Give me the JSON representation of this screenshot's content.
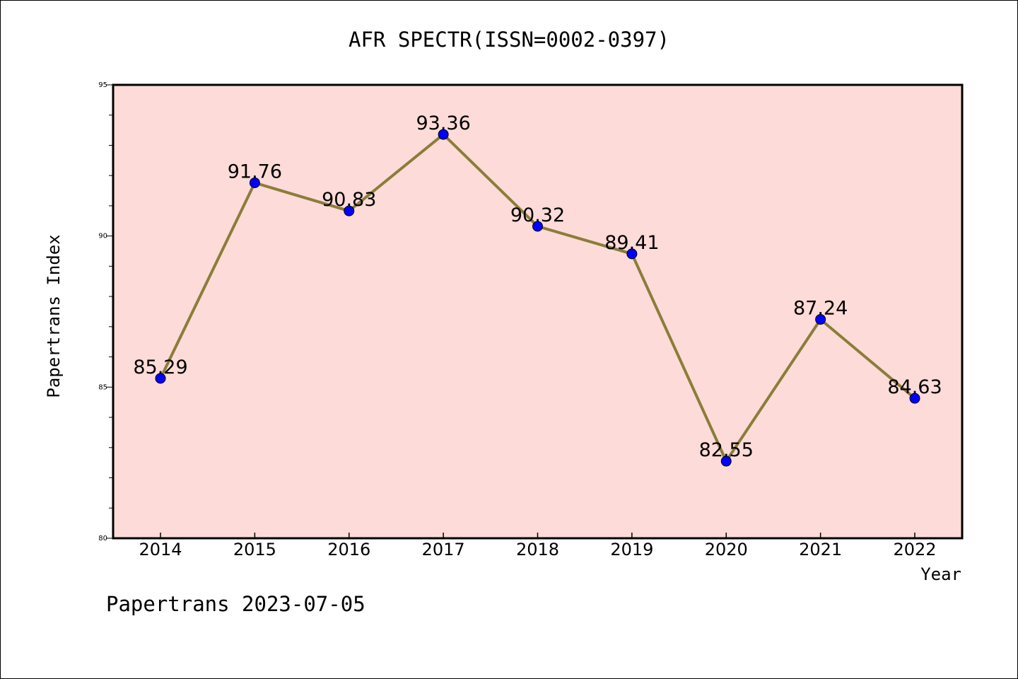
{
  "chart_data": {
    "type": "line",
    "title": "AFR SPECTR(ISSN=0002-0397)",
    "xlabel": "Year",
    "ylabel": "Papertrans Index",
    "footer": "Papertrans 2023-07-05",
    "categories": [
      "2014",
      "2015",
      "2016",
      "2017",
      "2018",
      "2019",
      "2020",
      "2021",
      "2022"
    ],
    "values": [
      85.29,
      91.76,
      90.83,
      93.36,
      90.32,
      89.41,
      82.55,
      87.24,
      84.63
    ],
    "labels": [
      "85.29",
      "91.76",
      "90.83",
      "93.36",
      "90.32",
      "89.41",
      "82.55",
      "87.24",
      "84.63"
    ],
    "ylim": [
      80,
      95
    ],
    "yticks": [
      "80",
      "85",
      "90",
      "95"
    ],
    "grid": false,
    "colors": {
      "plot_background": "#fddbd8",
      "line": "#8b7d3a",
      "marker": "#0000ff"
    }
  }
}
